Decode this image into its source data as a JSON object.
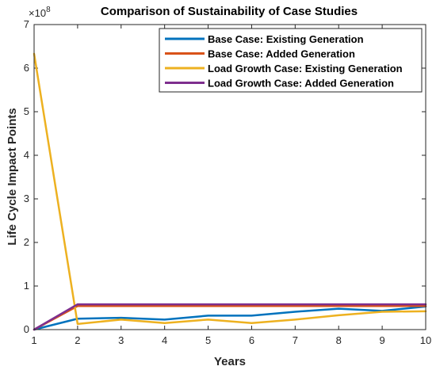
{
  "chart_data": {
    "type": "line",
    "title": "Comparison of Sustainability of Case Studies",
    "xlabel": "Years",
    "ylabel": "Life Cycle Impact Points",
    "y_exponent_base": "×10",
    "y_exponent_power": "8",
    "y_scale": 100000000,
    "xlim": [
      1,
      10
    ],
    "ylim": [
      0,
      7
    ],
    "x_ticks": [
      "1",
      "2",
      "3",
      "4",
      "5",
      "6",
      "7",
      "8",
      "9",
      "10"
    ],
    "y_ticks": [
      "0",
      "1",
      "2",
      "3",
      "4",
      "5",
      "6",
      "7"
    ],
    "legend_position": "top-right",
    "x": [
      1,
      2,
      3,
      4,
      5,
      6,
      7,
      8,
      9,
      10
    ],
    "series": [
      {
        "name": "Base Case: Existing Generation",
        "color": "#0072BD",
        "values": [
          0,
          0.25,
          0.27,
          0.23,
          0.32,
          0.32,
          0.41,
          0.48,
          0.43,
          0.53
        ]
      },
      {
        "name": "Base Case: Added Generation",
        "color": "#D95319",
        "values": [
          0,
          0.54,
          0.54,
          0.54,
          0.54,
          0.54,
          0.54,
          0.54,
          0.54,
          0.54
        ]
      },
      {
        "name": "Load Growth Case: Existing Generation",
        "color": "#EDB120",
        "values": [
          6.33,
          0.13,
          0.23,
          0.15,
          0.23,
          0.15,
          0.23,
          0.33,
          0.41,
          0.42
        ]
      },
      {
        "name": "Load Growth Case: Added Generation",
        "color": "#7E2F8E",
        "values": [
          0,
          0.58,
          0.58,
          0.58,
          0.58,
          0.58,
          0.58,
          0.58,
          0.58,
          0.58
        ]
      }
    ]
  }
}
